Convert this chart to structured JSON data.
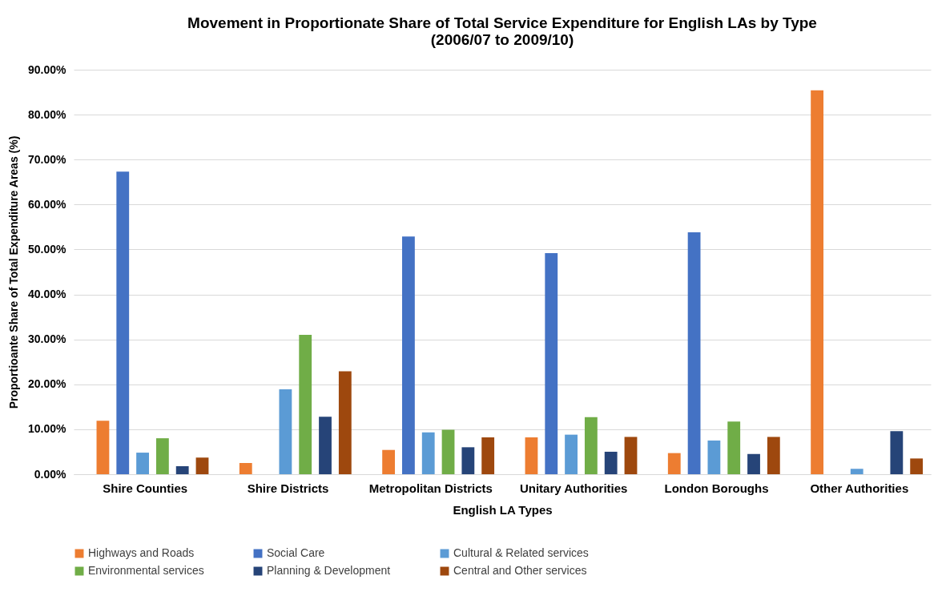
{
  "chart_data": {
    "type": "bar",
    "title": "Movement in Proportionate Share of Total Service Expenditure for English LAs by Type\n(2006/07 to 2009/10)",
    "xlabel": "English LA Types",
    "ylabel": "Proportioante Share of Total Expenditure Areas (%)",
    "categories": [
      "Shire Counties",
      "Shire Districts",
      "Metropolitan Districts",
      "Unitary Authorities",
      "London Boroughs",
      "Other Authorities"
    ],
    "series": [
      {
        "name": "Highways and Roads",
        "color": "#ed7d31",
        "values": [
          11.9,
          2.5,
          5.4,
          8.2,
          4.7,
          85.4
        ]
      },
      {
        "name": "Social Care",
        "color": "#4472c4",
        "values": [
          67.3,
          null,
          52.9,
          49.2,
          53.8,
          null
        ]
      },
      {
        "name": "Cultural & Related services",
        "color": "#5b9bd5",
        "values": [
          4.8,
          18.9,
          9.3,
          8.8,
          7.5,
          1.2
        ]
      },
      {
        "name": "Environmental services",
        "color": "#70ad47",
        "values": [
          8.0,
          31.0,
          9.9,
          12.7,
          11.7,
          null
        ]
      },
      {
        "name": "Planning & Development",
        "color": "#264478",
        "values": [
          1.8,
          12.8,
          6.0,
          5.0,
          4.5,
          9.6
        ]
      },
      {
        "name": "Central and Other services",
        "color": "#9e480e",
        "values": [
          3.7,
          22.9,
          8.2,
          8.3,
          8.3,
          3.5
        ]
      }
    ],
    "ylim": [
      0,
      90
    ],
    "yticks": [
      {
        "value": 0,
        "label": "0.00%"
      },
      {
        "value": 10,
        "label": "10.00%"
      },
      {
        "value": 20,
        "label": "20.00%"
      },
      {
        "value": 30,
        "label": "30.00%"
      },
      {
        "value": 40,
        "label": "40.00%"
      },
      {
        "value": 50,
        "label": "50.00%"
      },
      {
        "value": 60,
        "label": "60.00%"
      },
      {
        "value": 70,
        "label": "70.00%"
      },
      {
        "value": 80,
        "label": "80.00%"
      },
      {
        "value": 90,
        "label": "90.00%"
      }
    ],
    "grid": "y",
    "legend": "bottom"
  }
}
